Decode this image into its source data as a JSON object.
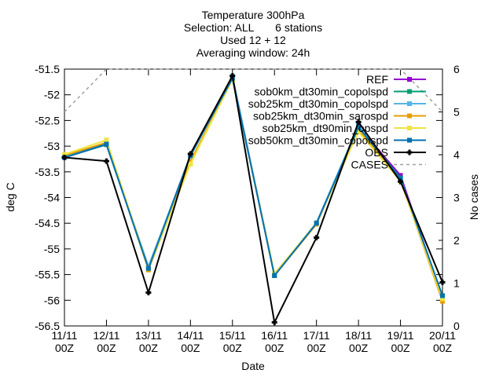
{
  "chart_data": {
    "type": "line",
    "title": [
      "Temperature 300hPa",
      "Selection: ALL       6 stations",
      "Used 12 + 12",
      "Averaging window: 24h"
    ],
    "xlabel": "Date",
    "ylabel": "deg C",
    "y2label": "No cases",
    "categories": [
      [
        "11/11",
        "00Z"
      ],
      [
        "12/11",
        "00Z"
      ],
      [
        "13/11",
        "00Z"
      ],
      [
        "14/11",
        "00Z"
      ],
      [
        "15/11",
        "00Z"
      ],
      [
        "16/11",
        "00Z"
      ],
      [
        "17/11",
        "00Z"
      ],
      [
        "18/11",
        "00Z"
      ],
      [
        "19/11",
        "00Z"
      ],
      [
        "20/11",
        "00Z"
      ]
    ],
    "ylim": [
      -56.5,
      -51.5
    ],
    "yticks": [
      "-51.5",
      "-52",
      "-52.5",
      "-53",
      "-53.5",
      "-54",
      "-54.5",
      "-55",
      "-55.5",
      "-56",
      "-56.5"
    ],
    "y2lim": [
      0,
      6
    ],
    "y2ticks": [
      "0",
      "1",
      "2",
      "3",
      "4",
      "5",
      "6"
    ],
    "grid": false,
    "legend_position": "top-right",
    "series": [
      {
        "name": "REF",
        "color": "#9400d3",
        "marker": "square",
        "dash": false,
        "axis": "y",
        "values": [
          -53.22,
          -52.97,
          -55.36,
          -53.18,
          -51.65,
          -55.52,
          -54.5,
          -52.62,
          -53.57,
          -55.95
        ]
      },
      {
        "name": "sob0km_dt30min_copolspd",
        "color": "#009e73",
        "marker": "square",
        "dash": false,
        "axis": "y",
        "values": [
          -53.22,
          -52.97,
          -55.36,
          -53.18,
          -51.65,
          -55.52,
          -54.5,
          -52.62,
          -53.62,
          -55.97
        ]
      },
      {
        "name": "sob25km_dt30min_copolspd",
        "color": "#56b4e9",
        "marker": "square",
        "dash": false,
        "axis": "y",
        "values": [
          -53.2,
          -52.95,
          -55.34,
          -53.2,
          -51.64,
          -55.5,
          -54.49,
          -52.6,
          -53.65,
          -55.93
        ]
      },
      {
        "name": "sob25km_dt30min_sarospd",
        "color": "#e69f00",
        "marker": "square",
        "dash": false,
        "axis": "y",
        "values": [
          -53.18,
          -52.93,
          -55.41,
          -53.3,
          -51.69,
          -55.52,
          -54.52,
          -52.68,
          -53.66,
          -56.02
        ]
      },
      {
        "name": "sob25km_dt90min_opspd",
        "color": "#f0e442",
        "marker": "square",
        "dash": false,
        "axis": "y",
        "values": [
          -53.16,
          -52.88,
          -55.38,
          -53.35,
          -51.7,
          -55.48,
          -54.5,
          -52.72,
          -53.68,
          -55.97
        ]
      },
      {
        "name": "sob50km_dt30min_copolspd",
        "color": "#0072b2",
        "marker": "square",
        "dash": false,
        "axis": "y",
        "values": [
          -53.22,
          -52.96,
          -55.38,
          -53.18,
          -51.68,
          -55.52,
          -54.5,
          -52.63,
          -53.63,
          -55.91
        ]
      },
      {
        "name": "OBS",
        "color": "#000000",
        "marker": "cross",
        "dash": false,
        "axis": "y",
        "values": [
          -53.22,
          -53.29,
          -55.85,
          -53.15,
          -51.63,
          -56.43,
          -54.78,
          -52.53,
          -53.69,
          -55.65
        ]
      },
      {
        "name": "CASES",
        "color": "#a0a0a0",
        "marker": "none",
        "dash": true,
        "axis": "y2",
        "values": [
          5,
          6,
          6,
          6,
          6,
          6,
          6,
          6,
          6,
          5
        ]
      }
    ]
  }
}
